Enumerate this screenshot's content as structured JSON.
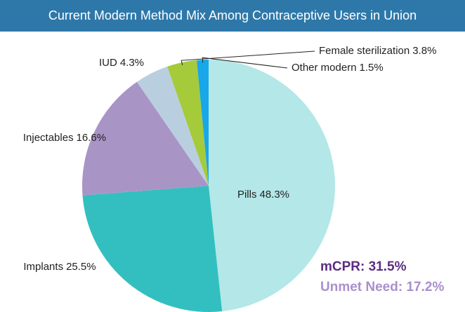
{
  "chart_data": {
    "type": "pie",
    "title": "Current Modern Method Mix Among Contraceptive Users in Union",
    "categories": [
      "Pills",
      "Implants",
      "Injectables",
      "IUD",
      "Female sterilization",
      "Other modern"
    ],
    "values": [
      48.3,
      25.5,
      16.6,
      4.3,
      3.8,
      1.5
    ],
    "value_labels": [
      "48.3%",
      "25.5%",
      "16.6%",
      "4.3%",
      "3.8%",
      "1.5%"
    ],
    "colors": [
      "#b4e7e7",
      "#33bfbf",
      "#a994c6",
      "#b9cfe0",
      "#a5cb3b",
      "#18a7e8"
    ],
    "annotations": [
      "mCPR: 31.5%",
      "Unmet Need: 17.2%"
    ]
  }
}
